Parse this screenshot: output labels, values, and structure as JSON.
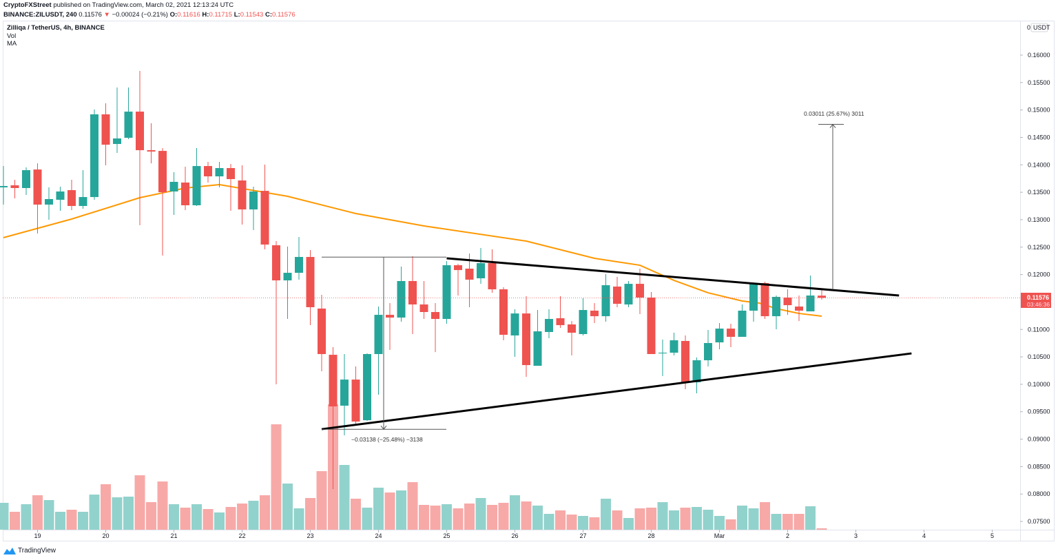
{
  "header": {
    "publisher": "CryptoFXStreet",
    "published_text": "published on TradingView.com, March 02, 2021 12:13:24 UTC",
    "symbol": "BINANCE:ZILUSDT, 240",
    "last": "0.11576",
    "change": "−0.00024 (−0.21%)",
    "open_label": "O:",
    "open": "0.11616",
    "high_label": "H:",
    "high": "0.11715",
    "low_label": "L:",
    "low": "0.11543",
    "close_label": "C:",
    "close": "0.11576",
    "down_arrow_icon": "triangle-down-icon"
  },
  "legend": {
    "title": "Zilliqa / TetherUS, 4h, BINANCE",
    "vol": "Vol",
    "ma": "MA"
  },
  "price_axis": {
    "unit_badge": "USDT",
    "unit_prefix": "0",
    "current_price": "0.11576",
    "countdown": "03:46:36"
  },
  "branding": {
    "logo_text": "TradingView",
    "logo_icon": "tradingview-logo-icon"
  },
  "colors": {
    "up": "#26a69a",
    "down": "#ef5350",
    "vol_up": "#92d2cc",
    "vol_down": "#f7a9a7",
    "ma": "#ff9800",
    "trendline": "#000000",
    "price_line": "#ef5350"
  },
  "chart_data": {
    "type": "candlestick",
    "interval": "4h",
    "grid": false,
    "y_scale": "linear",
    "ylim": [
      0.0735,
      0.1645
    ],
    "y_ticks": [
      "0.16000",
      "0.15500",
      "0.15000",
      "0.14500",
      "0.14000",
      "0.13500",
      "0.13000",
      "0.12500",
      "0.12000",
      "0.11000",
      "0.10500",
      "0.10000",
      "0.09500",
      "0.09000",
      "0.08500",
      "0.08000",
      "0.07500"
    ],
    "x_ticks": [
      "19",
      "20",
      "21",
      "22",
      "23",
      "24",
      "25",
      "26",
      "27",
      "28",
      "Mar",
      "2",
      "3",
      "4",
      "5"
    ],
    "ohlc": [
      [
        0.13589,
        0.13978,
        0.13275,
        0.13614
      ],
      [
        0.13627,
        0.13727,
        0.13388,
        0.13577
      ],
      [
        0.13577,
        0.13953,
        0.13451,
        0.13903
      ],
      [
        0.13915,
        0.14028,
        0.12748,
        0.13275
      ],
      [
        0.13275,
        0.13589,
        0.12999,
        0.13376
      ],
      [
        0.13363,
        0.13602,
        0.13162,
        0.13514
      ],
      [
        0.13539,
        0.13727,
        0.13175,
        0.1325
      ],
      [
        0.1325,
        0.13903,
        0.132,
        0.13413
      ],
      [
        0.13413,
        0.15008,
        0.13363,
        0.1492
      ],
      [
        0.1492,
        0.15121,
        0.13991,
        0.14367
      ],
      [
        0.1438,
        0.1541,
        0.14217,
        0.14481
      ],
      [
        0.14493,
        0.1541,
        0.14468,
        0.1497
      ],
      [
        0.1497,
        0.15711,
        0.12899,
        0.14267
      ],
      [
        0.14267,
        0.14757,
        0.14028,
        0.14242
      ],
      [
        0.14254,
        0.14305,
        0.12346,
        0.13501
      ],
      [
        0.13514,
        0.13865,
        0.13087,
        0.1369
      ],
      [
        0.13677,
        0.13966,
        0.13175,
        0.13263
      ],
      [
        0.13263,
        0.14305,
        0.1325,
        0.13978
      ],
      [
        0.13978,
        0.14054,
        0.13677,
        0.1379
      ],
      [
        0.1379,
        0.14054,
        0.13589,
        0.13941
      ],
      [
        0.13941,
        0.14016,
        0.13162,
        0.1374
      ],
      [
        0.13715,
        0.13991,
        0.12911,
        0.13187
      ],
      [
        0.13187,
        0.13602,
        0.12811,
        0.13514
      ],
      [
        0.13526,
        0.14003,
        0.12459,
        0.12547
      ],
      [
        0.12534,
        0.1261,
        0.09998,
        0.11894
      ],
      [
        0.11894,
        0.12509,
        0.11191,
        0.12032
      ],
      [
        0.12032,
        0.12685,
        0.11907,
        0.12321
      ],
      [
        0.12321,
        0.12447,
        0.11078,
        0.11405
      ],
      [
        0.1138,
        0.11631,
        0.10237,
        0.10551
      ],
      [
        0.10538,
        0.10676,
        0.0809,
        0.09597
      ],
      [
        0.0961,
        0.10551,
        0.09069,
        0.10086
      ],
      [
        0.10086,
        0.10325,
        0.09283,
        0.0932
      ],
      [
        0.09345,
        0.10563,
        0.09333,
        0.10551
      ],
      [
        0.10551,
        0.11417,
        0.0981,
        0.11266
      ],
      [
        0.11266,
        0.1148,
        0.10626,
        0.11216
      ],
      [
        0.11216,
        0.12145,
        0.11141,
        0.11882
      ],
      [
        0.11882,
        0.12334,
        0.10915,
        0.11455
      ],
      [
        0.11455,
        0.11882,
        0.11191,
        0.11317
      ],
      [
        0.11317,
        0.1148,
        0.10588,
        0.11191
      ],
      [
        0.11191,
        0.12246,
        0.11103,
        0.1217
      ],
      [
        0.1217,
        0.12195,
        0.11618,
        0.12082
      ],
      [
        0.12108,
        0.12384,
        0.11405,
        0.11907
      ],
      [
        0.11932,
        0.12484,
        0.11831,
        0.12208
      ],
      [
        0.12208,
        0.12459,
        0.11668,
        0.11731
      ],
      [
        0.11731,
        0.11769,
        0.10802,
        0.10902
      ],
      [
        0.1089,
        0.11367,
        0.10501,
        0.11291
      ],
      [
        0.11291,
        0.11605,
        0.10136,
        0.1035
      ],
      [
        0.10337,
        0.11354,
        0.10337,
        0.10965
      ],
      [
        0.10953,
        0.11367,
        0.1084,
        0.11191
      ],
      [
        0.11204,
        0.11605,
        0.11028,
        0.11078
      ],
      [
        0.11091,
        0.11153,
        0.10526,
        0.1094
      ],
      [
        0.10915,
        0.11568,
        0.1089,
        0.11354
      ],
      [
        0.11342,
        0.1148,
        0.11116,
        0.11241
      ],
      [
        0.11241,
        0.12007,
        0.11141,
        0.11806
      ],
      [
        0.11781,
        0.11957,
        0.11405,
        0.11467
      ],
      [
        0.11455,
        0.11882,
        0.11405,
        0.11831
      ],
      [
        0.11831,
        0.12108,
        0.11279,
        0.11581
      ],
      [
        0.11581,
        0.11681,
        0.10551,
        0.10551
      ],
      [
        0.10563,
        0.10815,
        0.10149,
        0.10576
      ],
      [
        0.10576,
        0.1094,
        0.10526,
        0.10802
      ],
      [
        0.1079,
        0.1089,
        0.09911,
        0.10024
      ],
      [
        0.10036,
        0.10488,
        0.09835,
        0.10438
      ],
      [
        0.10438,
        0.1099,
        0.10325,
        0.10752
      ],
      [
        0.10764,
        0.11116,
        0.10639,
        0.11015
      ],
      [
        0.11015,
        0.11103,
        0.10676,
        0.10865
      ],
      [
        0.10865,
        0.11455,
        0.10865,
        0.11342
      ],
      [
        0.11342,
        0.11844,
        0.11141,
        0.11844
      ],
      [
        0.11844,
        0.11869,
        0.11191,
        0.11241
      ],
      [
        0.11241,
        0.11618,
        0.11003,
        0.11593
      ],
      [
        0.11581,
        0.11731,
        0.11266,
        0.11442
      ],
      [
        0.11417,
        0.11618,
        0.11153,
        0.11342
      ],
      [
        0.11329,
        0.11982,
        0.11329,
        0.11618
      ],
      [
        0.11616,
        0.11715,
        0.11543,
        0.11576
      ]
    ],
    "volume_relative": [
      39,
      26,
      37,
      50,
      43,
      26,
      29,
      26,
      51,
      66,
      47,
      48,
      79,
      40,
      70,
      37,
      32,
      37,
      30,
      25,
      33,
      38,
      42,
      50,
      153,
      67,
      31,
      46,
      85,
      182,
      94,
      45,
      32,
      61,
      54,
      57,
      69,
      36,
      35,
      37,
      31,
      38,
      46,
      36,
      39,
      50,
      41,
      35,
      23,
      28,
      22,
      20,
      18,
      45,
      28,
      17,
      31,
      32,
      40,
      28,
      32,
      33,
      29,
      20,
      15,
      35,
      31,
      40,
      23,
      23,
      23,
      34,
      2
    ],
    "moving_average": [
      [
        0,
        0.12673
      ],
      [
        6,
        0.13012
      ],
      [
        12,
        0.13401
      ],
      [
        16,
        0.13577
      ],
      [
        19,
        0.1364
      ],
      [
        25,
        0.13426
      ],
      [
        31,
        0.13112
      ],
      [
        37,
        0.12886
      ],
      [
        46,
        0.1261
      ],
      [
        52,
        0.12296
      ],
      [
        56,
        0.1217
      ],
      [
        59,
        0.11894
      ],
      [
        62,
        0.11668
      ],
      [
        65,
        0.11518
      ],
      [
        66.5,
        0.1148
      ],
      [
        68,
        0.1138
      ],
      [
        70,
        0.11291
      ],
      [
        72,
        0.11241
      ]
    ],
    "trendlines": [
      {
        "from": [
          39,
          0.12296
        ],
        "to": [
          78.8,
          0.11618
        ]
      },
      {
        "from": [
          28,
          0.09182
        ],
        "to": [
          79.9,
          0.10563
        ]
      }
    ],
    "measurements": [
      {
        "label": "−0.03138 (−25.48%) −3138",
        "from_price": 0.12318,
        "to_price": 0.0918
      },
      {
        "label": "0.03011 (25.67%) 3011",
        "from_price": 0.11727,
        "to_price": 0.14738
      }
    ]
  }
}
